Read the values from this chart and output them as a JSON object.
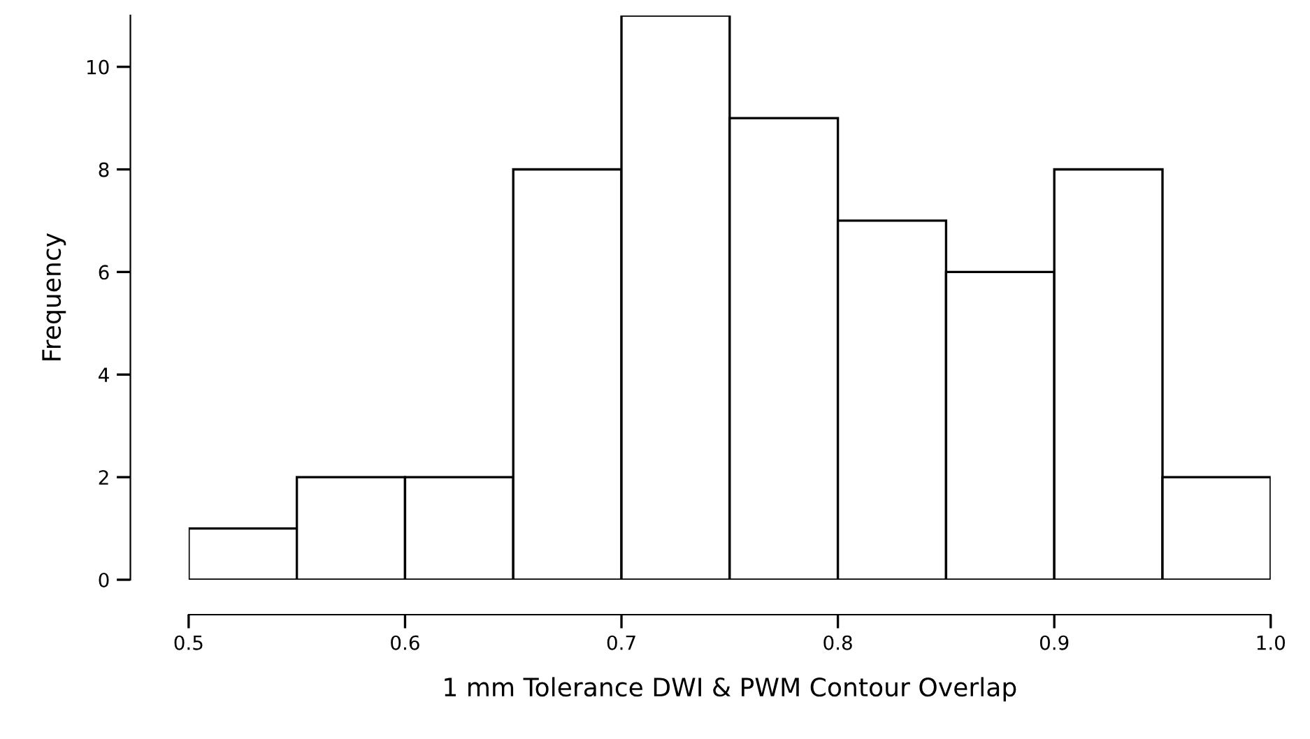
{
  "chart_data": {
    "type": "histogram",
    "xlabel": "1 mm Tolerance DWI & PWM Contour Overlap",
    "ylabel": "Frequency",
    "bins": [
      0.5,
      0.55,
      0.6,
      0.65,
      0.7,
      0.75,
      0.8,
      0.85,
      0.9,
      0.95,
      1.0
    ],
    "values": [
      1,
      2,
      2,
      8,
      11,
      9,
      7,
      6,
      8,
      2
    ],
    "color": "#ffffff",
    "xlim": [
      0.5,
      1.0
    ],
    "ylim": [
      0,
      11
    ],
    "xticks": [
      0.5,
      0.6,
      0.7,
      0.8,
      0.9,
      {
        "value": 1.0,
        "label": "1.0"
      }
    ],
    "yticks": [
      0,
      2,
      4,
      6,
      8,
      10
    ],
    "grid": false,
    "legend": false
  }
}
